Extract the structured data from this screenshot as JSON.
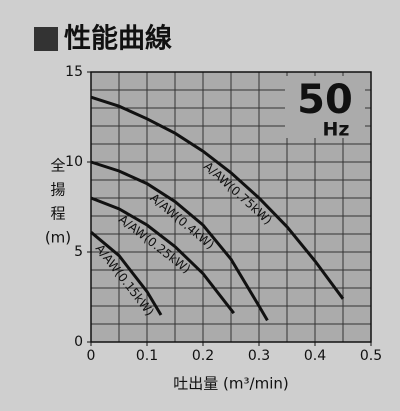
{
  "chart_data": {
    "type": "line",
    "title": "性能曲線",
    "badge_number": "50",
    "badge_unit": "Hz",
    "x_label": "吐出量 (m³/min)",
    "y_label": [
      "全",
      "揚",
      "程",
      "(m)"
    ],
    "xlim": [
      0,
      0.5
    ],
    "ylim": [
      0,
      15
    ],
    "xticks": [
      0,
      0.1,
      0.2,
      0.3,
      0.4,
      0.5
    ],
    "yticks": [
      0,
      5,
      10,
      15
    ],
    "xgrid": [
      0,
      0.05,
      0.1,
      0.15,
      0.2,
      0.25,
      0.3,
      0.35,
      0.4,
      0.45,
      0.5
    ],
    "ygrid": [
      0,
      1,
      2,
      3,
      4,
      5,
      6,
      7,
      8,
      9,
      10,
      11,
      12,
      13,
      14,
      15
    ],
    "grid": true,
    "color": "#111111",
    "series": [
      {
        "name": "A/AW(0.75kW)",
        "x": [
          0,
          0.05,
          0.1,
          0.15,
          0.2,
          0.25,
          0.3,
          0.35,
          0.4,
          0.45
        ],
        "values": [
          13.6,
          13.1,
          12.4,
          11.6,
          10.6,
          9.4,
          8.0,
          6.4,
          4.5,
          2.4
        ]
      },
      {
        "name": "A/AW(0.4kW)",
        "x": [
          0,
          0.05,
          0.1,
          0.15,
          0.2,
          0.25,
          0.3,
          0.315
        ],
        "values": [
          10.0,
          9.5,
          8.8,
          7.8,
          6.5,
          4.6,
          2.0,
          1.2
        ]
      },
      {
        "name": "A/AW(0.25kW)",
        "x": [
          0,
          0.05,
          0.1,
          0.15,
          0.2,
          0.255
        ],
        "values": [
          8.0,
          7.4,
          6.5,
          5.3,
          3.8,
          1.6
        ]
      },
      {
        "name": "A/AW(0.15kW)",
        "x": [
          0,
          0.05,
          0.1,
          0.125
        ],
        "values": [
          6.1,
          4.8,
          2.8,
          1.5
        ]
      }
    ]
  }
}
